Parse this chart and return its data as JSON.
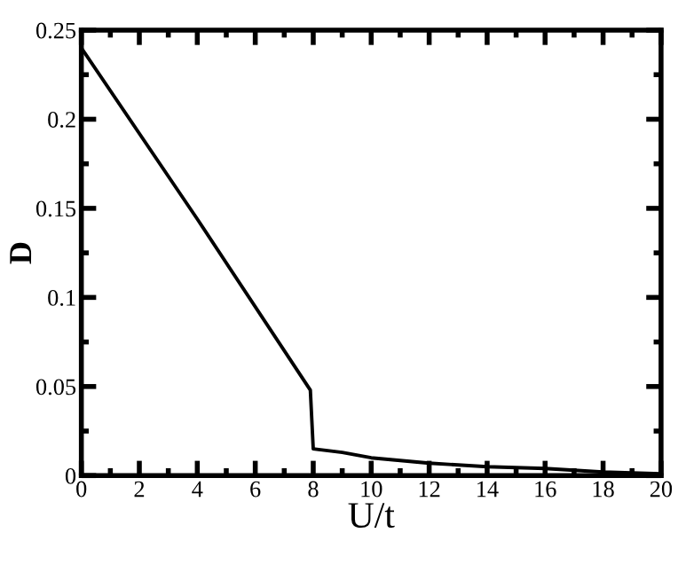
{
  "chart_data": {
    "type": "line",
    "xlabel": "U/t",
    "ylabel": "D",
    "series": [
      {
        "color": "#000000",
        "x": [
          0,
          4,
          7.9,
          8,
          9,
          10,
          12,
          14,
          16,
          18,
          20
        ],
        "values": [
          0.24,
          0.144,
          0.048,
          0.015,
          0.013,
          0.01,
          0.007,
          0.005,
          0.004,
          0.002,
          0.001
        ]
      }
    ],
    "xlim": [
      0,
      20
    ],
    "ylim": [
      0,
      0.25
    ],
    "xticks": [
      0,
      2,
      4,
      6,
      8,
      10,
      12,
      14,
      16,
      18,
      20
    ],
    "yticks": [
      0,
      0.05,
      0.1,
      0.15,
      0.2,
      0.25
    ],
    "grid": false,
    "legend": false,
    "marker": "none",
    "line_style": "solid"
  }
}
